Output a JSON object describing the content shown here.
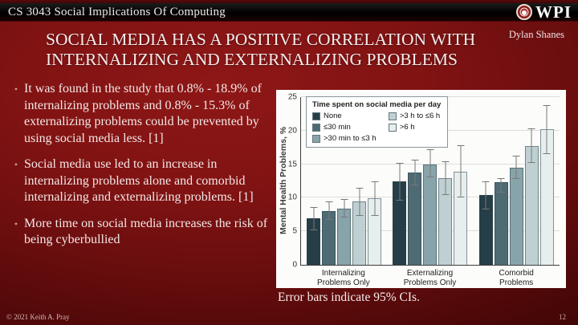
{
  "header": {
    "course": "CS 3043 Social Implications Of Computing",
    "logo_text": "WPI",
    "author": "Dylan Shanes"
  },
  "slide": {
    "title": "SOCIAL MEDIA HAS A POSITIVE CORRELATION WITH INTERNALIZING AND EXTERNALIZING PROBLEMS",
    "chart_caption": "Error bars indicate 95% CIs."
  },
  "icons": {
    "bullet": "•"
  },
  "bullets": [
    "It was found in the study that 0.8% - 18.9% of internalizing problems and 0.8% - 15.3% of externalizing problems could be prevented by using social media less. [1]",
    "Social media use led to an increase in internalizing problems alone and comorbid internalizing and externalizing problems. [1]",
    "More time on social media increases the risk of being cyberbullied"
  ],
  "chart_data": {
    "type": "bar",
    "legend_title": "Time spent on social media per day",
    "ylabel": "Mental Health Problems, %",
    "ylim": [
      0,
      25
    ],
    "yticks": [
      0,
      5,
      10,
      15,
      20,
      25
    ],
    "grid": true,
    "legend_position": "top-left",
    "error_bars": "95% CI",
    "categories": [
      "Internalizing\nProblems Only",
      "Externalizing\nProblems Only",
      "Comorbid\nProblems"
    ],
    "series": [
      {
        "name": "None",
        "color": "#253e47",
        "values": [
          6.9,
          12.4,
          10.4
        ],
        "ci": [
          [
            5.2,
            8.6
          ],
          [
            9.6,
            15.2
          ],
          [
            8.3,
            12.5
          ]
        ]
      },
      {
        "name": "≤30 min",
        "color": "#4e6b74",
        "values": [
          8.0,
          13.7,
          12.3
        ],
        "ci": [
          [
            6.7,
            9.4
          ],
          [
            11.8,
            15.7
          ],
          [
            10.8,
            12.9
          ]
        ]
      },
      {
        "name": ">30 min to ≤3 h",
        "color": "#88a4ab",
        "values": [
          8.4,
          15.0,
          14.5
        ],
        "ci": [
          [
            7.0,
            9.8
          ],
          [
            13.0,
            17.2
          ],
          [
            12.8,
            16.3
          ]
        ]
      },
      {
        "name": ">3 h to ≤6 h",
        "color": "#bfd0d3",
        "values": [
          9.4,
          12.9,
          17.7
        ],
        "ci": [
          [
            7.3,
            11.5
          ],
          [
            10.4,
            15.4
          ],
          [
            15.2,
            20.3
          ]
        ]
      },
      {
        "name": ">6 h",
        "color": "#e7eeee",
        "values": [
          9.9,
          13.9,
          20.2
        ],
        "ci": [
          [
            7.3,
            12.4
          ],
          [
            10.1,
            17.8
          ],
          [
            16.5,
            23.8
          ]
        ]
      }
    ]
  },
  "footer": {
    "copyright": "© 2021 Keith A. Pray",
    "page_number": "12"
  }
}
